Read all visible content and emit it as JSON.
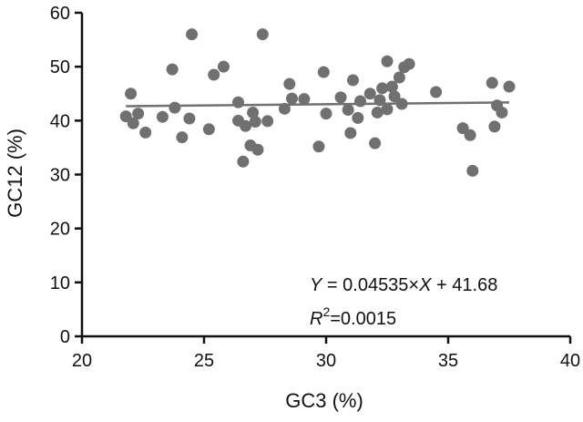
{
  "chart_data": {
    "type": "scatter",
    "title": "",
    "xlabel": "GC3 (%)",
    "ylabel": "GC12 (%)",
    "xlim": [
      20,
      40
    ],
    "ylim": [
      0,
      60
    ],
    "xticks": [
      "20",
      "25",
      "30",
      "35",
      "40"
    ],
    "yticks": [
      "0",
      "10",
      "20",
      "30",
      "40",
      "50",
      "60"
    ],
    "grid": false,
    "legend": "none",
    "point_color": "#707070",
    "line_color": "#707070",
    "series": [
      {
        "points": [
          [
            21.8,
            40.8
          ],
          [
            22.0,
            45.0
          ],
          [
            22.1,
            39.5
          ],
          [
            22.3,
            41.3
          ],
          [
            22.6,
            37.8
          ],
          [
            23.3,
            40.7
          ],
          [
            23.7,
            49.5
          ],
          [
            23.8,
            42.4
          ],
          [
            24.1,
            36.9
          ],
          [
            24.4,
            40.4
          ],
          [
            24.5,
            56.0
          ],
          [
            25.2,
            38.4
          ],
          [
            25.4,
            48.5
          ],
          [
            25.8,
            50.0
          ],
          [
            26.4,
            43.4
          ],
          [
            26.4,
            40.0
          ],
          [
            26.6,
            32.4
          ],
          [
            26.7,
            39.0
          ],
          [
            26.9,
            35.4
          ],
          [
            27.0,
            41.5
          ],
          [
            27.1,
            39.8
          ],
          [
            27.2,
            34.6
          ],
          [
            27.4,
            56.0
          ],
          [
            27.6,
            39.9
          ],
          [
            28.3,
            42.2
          ],
          [
            28.5,
            46.8
          ],
          [
            28.6,
            44.1
          ],
          [
            29.1,
            44.0
          ],
          [
            29.7,
            35.2
          ],
          [
            29.9,
            49.0
          ],
          [
            30.0,
            41.3
          ],
          [
            30.6,
            44.3
          ],
          [
            30.9,
            42.0
          ],
          [
            31.0,
            37.7
          ],
          [
            31.1,
            47.5
          ],
          [
            31.3,
            40.5
          ],
          [
            31.4,
            43.6
          ],
          [
            31.8,
            45.0
          ],
          [
            32.0,
            35.8
          ],
          [
            32.1,
            41.5
          ],
          [
            32.2,
            43.8
          ],
          [
            32.3,
            46.0
          ],
          [
            32.5,
            42.1
          ],
          [
            32.5,
            51.0
          ],
          [
            32.7,
            46.3
          ],
          [
            32.8,
            44.5
          ],
          [
            33.0,
            48.0
          ],
          [
            33.1,
            43.1
          ],
          [
            33.2,
            49.9
          ],
          [
            33.4,
            50.5
          ],
          [
            34.5,
            45.3
          ],
          [
            35.6,
            38.6
          ],
          [
            35.9,
            37.3
          ],
          [
            36.0,
            30.7
          ],
          [
            36.8,
            47.0
          ],
          [
            36.9,
            38.9
          ],
          [
            37.0,
            42.8
          ],
          [
            37.2,
            41.5
          ],
          [
            37.5,
            46.3
          ]
        ]
      }
    ],
    "regression": {
      "slope": 0.04535,
      "intercept": 41.68,
      "x_range": [
        21.8,
        37.5
      ]
    },
    "annotations": {
      "equation": {
        "y_var": "Y",
        "eq_mid": " = 0.04535×",
        "x_var": "X",
        "eq_end": " + 41.68"
      },
      "r2": {
        "r_var": "R",
        "r_sup": "2",
        "r_val": "=0.0015"
      }
    }
  }
}
